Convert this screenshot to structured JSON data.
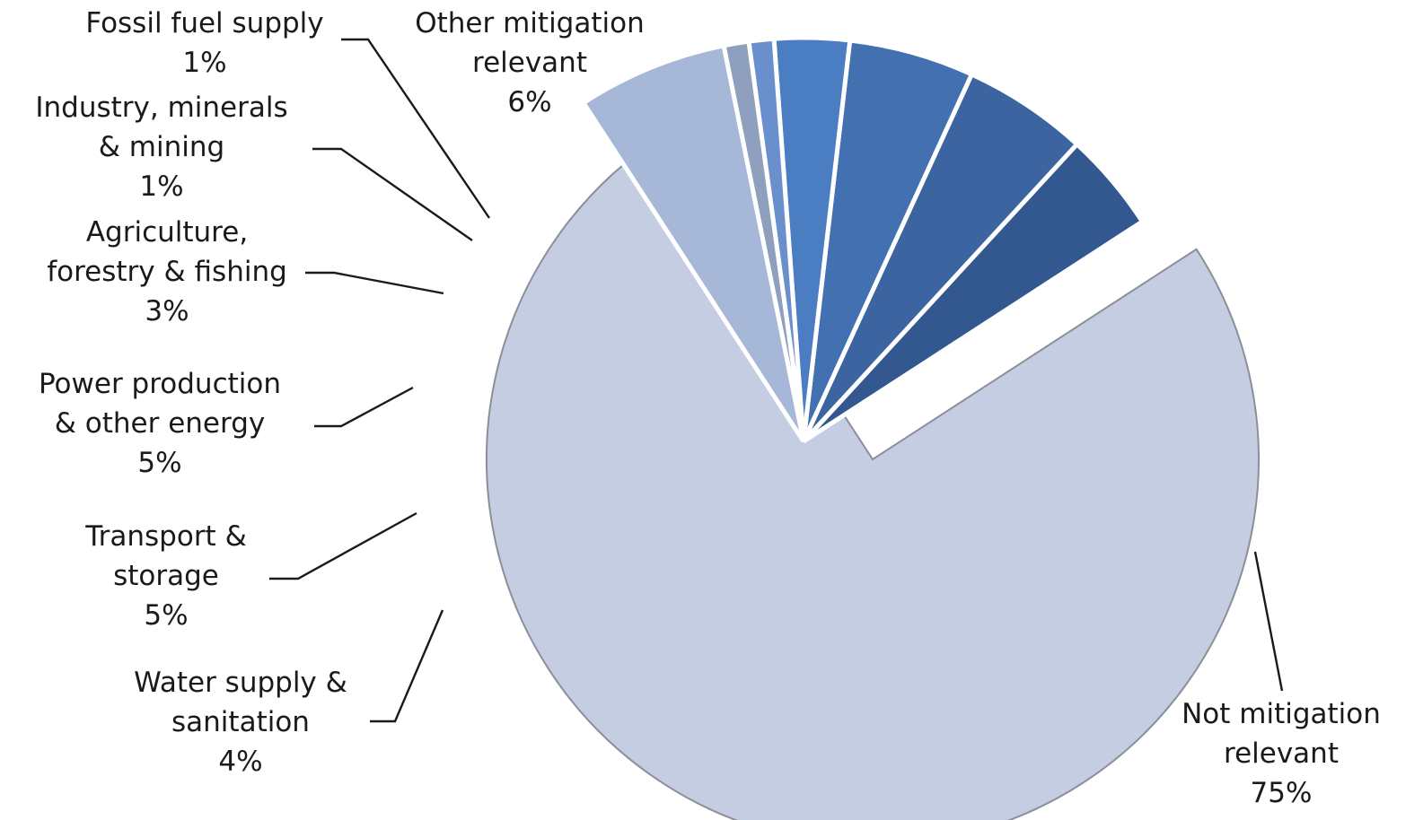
{
  "chart_data": {
    "type": "pie",
    "slices": [
      {
        "label": [
          "Not mitigation",
          "relevant"
        ],
        "value": 75,
        "value_label": "75%",
        "color": "#c4cde2"
      },
      {
        "label": [
          "Water supply &",
          "sanitation"
        ],
        "value": 4,
        "value_label": "4%",
        "color": "#33588f"
      },
      {
        "label": [
          "Transport &",
          "storage"
        ],
        "value": 5,
        "value_label": "5%",
        "color": "#3c64a0"
      },
      {
        "label": [
          "Power production",
          "& other energy"
        ],
        "value": 5,
        "value_label": "5%",
        "color": "#4270b1"
      },
      {
        "label": [
          "Agriculture,",
          "forestry & fishing"
        ],
        "value": 3,
        "value_label": "3%",
        "color": "#4b7dc2"
      },
      {
        "label": [
          "Industry, minerals",
          "& mining"
        ],
        "value": 1,
        "value_label": "1%",
        "color": "#6a8fcd"
      },
      {
        "label": [
          "Fossil fuel supply"
        ],
        "value": 1,
        "value_label": "1%",
        "color": "#8ea0bd"
      },
      {
        "label": [
          "Other mitigation",
          "relevant"
        ],
        "value": 6,
        "value_label": "6%",
        "color": "#a7b7d8"
      }
    ],
    "legend": "none"
  }
}
